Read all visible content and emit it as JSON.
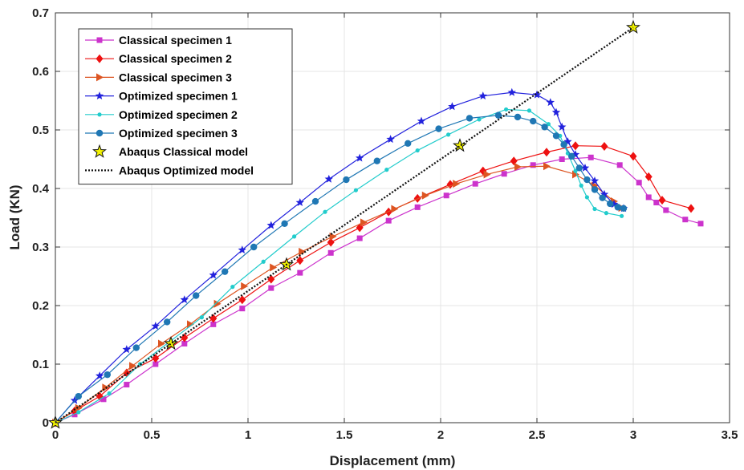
{
  "chart_data": {
    "type": "line",
    "xlabel": "Displacement (mm)",
    "ylabel": "Load (KN)",
    "xlim": [
      0,
      3.5
    ],
    "ylim": [
      0,
      0.7
    ],
    "xticks": [
      0,
      0.5,
      1,
      1.5,
      2,
      2.5,
      3,
      3.5
    ],
    "yticks": [
      0,
      0.1,
      0.2,
      0.3,
      0.4,
      0.5,
      0.6,
      0.7
    ],
    "xtick_labels": [
      "0",
      "0.5",
      "1",
      "1.5",
      "2",
      "2.5",
      "3",
      "3.5"
    ],
    "ytick_labels": [
      "0",
      "0.1",
      "0.2",
      "0.3",
      "0.4",
      "0.5",
      "0.6",
      "0.7"
    ],
    "grid": true,
    "legend_position": "top-left",
    "series": [
      {
        "name": "Classical specimen 1",
        "color": "#cc33cc",
        "marker": "square",
        "line": "solid",
        "points": [
          [
            0,
            0
          ],
          [
            0.1,
            0.014
          ],
          [
            0.25,
            0.04
          ],
          [
            0.37,
            0.065
          ],
          [
            0.52,
            0.1
          ],
          [
            0.67,
            0.135
          ],
          [
            0.82,
            0.168
          ],
          [
            0.97,
            0.195
          ],
          [
            1.12,
            0.23
          ],
          [
            1.27,
            0.256
          ],
          [
            1.43,
            0.29
          ],
          [
            1.58,
            0.315
          ],
          [
            1.73,
            0.345
          ],
          [
            1.88,
            0.368
          ],
          [
            2.03,
            0.388
          ],
          [
            2.18,
            0.408
          ],
          [
            2.33,
            0.425
          ],
          [
            2.48,
            0.44
          ],
          [
            2.63,
            0.45
          ],
          [
            2.78,
            0.453
          ],
          [
            2.93,
            0.44
          ],
          [
            3.03,
            0.41
          ],
          [
            3.08,
            0.385
          ],
          [
            3.12,
            0.376
          ],
          [
            3.17,
            0.363
          ],
          [
            3.27,
            0.347
          ],
          [
            3.35,
            0.34
          ]
        ]
      },
      {
        "name": "Classical specimen 2",
        "color": "#ee1111",
        "marker": "diamond",
        "line": "solid",
        "points": [
          [
            0,
            0
          ],
          [
            0.1,
            0.02
          ],
          [
            0.23,
            0.045
          ],
          [
            0.37,
            0.085
          ],
          [
            0.52,
            0.11
          ],
          [
            0.67,
            0.145
          ],
          [
            0.82,
            0.178
          ],
          [
            0.97,
            0.21
          ],
          [
            1.12,
            0.245
          ],
          [
            1.27,
            0.277
          ],
          [
            1.43,
            0.308
          ],
          [
            1.58,
            0.333
          ],
          [
            1.73,
            0.36
          ],
          [
            1.88,
            0.383
          ],
          [
            2.05,
            0.407
          ],
          [
            2.22,
            0.43
          ],
          [
            2.38,
            0.447
          ],
          [
            2.55,
            0.462
          ],
          [
            2.7,
            0.473
          ],
          [
            2.85,
            0.472
          ],
          [
            3.0,
            0.455
          ],
          [
            3.08,
            0.42
          ],
          [
            3.15,
            0.38
          ],
          [
            3.3,
            0.366
          ]
        ]
      },
      {
        "name": "Classical specimen 3",
        "color": "#dd5522",
        "marker": "triangle-right",
        "line": "solid",
        "points": [
          [
            0,
            0
          ],
          [
            0.12,
            0.025
          ],
          [
            0.26,
            0.06
          ],
          [
            0.4,
            0.097
          ],
          [
            0.55,
            0.135
          ],
          [
            0.7,
            0.168
          ],
          [
            0.84,
            0.203
          ],
          [
            0.98,
            0.233
          ],
          [
            1.13,
            0.265
          ],
          [
            1.28,
            0.292
          ],
          [
            1.44,
            0.318
          ],
          [
            1.6,
            0.342
          ],
          [
            1.76,
            0.365
          ],
          [
            1.92,
            0.388
          ],
          [
            2.08,
            0.408
          ],
          [
            2.24,
            0.424
          ],
          [
            2.4,
            0.437
          ],
          [
            2.55,
            0.438
          ],
          [
            2.7,
            0.424
          ],
          [
            2.8,
            0.405
          ],
          [
            2.9,
            0.378
          ],
          [
            2.94,
            0.367
          ]
        ]
      },
      {
        "name": "Optimized specimen 1",
        "color": "#2222dd",
        "marker": "star",
        "line": "solid",
        "points": [
          [
            0,
            0
          ],
          [
            0.1,
            0.038
          ],
          [
            0.23,
            0.08
          ],
          [
            0.37,
            0.125
          ],
          [
            0.52,
            0.165
          ],
          [
            0.67,
            0.21
          ],
          [
            0.82,
            0.252
          ],
          [
            0.97,
            0.295
          ],
          [
            1.12,
            0.337
          ],
          [
            1.27,
            0.376
          ],
          [
            1.42,
            0.416
          ],
          [
            1.58,
            0.452
          ],
          [
            1.74,
            0.484
          ],
          [
            1.9,
            0.515
          ],
          [
            2.06,
            0.54
          ],
          [
            2.22,
            0.558
          ],
          [
            2.37,
            0.564
          ],
          [
            2.5,
            0.56
          ],
          [
            2.57,
            0.547
          ],
          [
            2.6,
            0.53
          ],
          [
            2.63,
            0.505
          ],
          [
            2.66,
            0.48
          ],
          [
            2.7,
            0.458
          ],
          [
            2.75,
            0.435
          ],
          [
            2.8,
            0.413
          ],
          [
            2.85,
            0.39
          ],
          [
            2.9,
            0.373
          ],
          [
            2.95,
            0.366
          ]
        ]
      },
      {
        "name": "Optimized specimen 2",
        "color": "#22cccc",
        "marker": "dot",
        "line": "solid",
        "points": [
          [
            0,
            0
          ],
          [
            0.12,
            0.018
          ],
          [
            0.28,
            0.05
          ],
          [
            0.44,
            0.1
          ],
          [
            0.6,
            0.14
          ],
          [
            0.76,
            0.18
          ],
          [
            0.92,
            0.232
          ],
          [
            1.08,
            0.275
          ],
          [
            1.24,
            0.318
          ],
          [
            1.4,
            0.36
          ],
          [
            1.56,
            0.397
          ],
          [
            1.72,
            0.432
          ],
          [
            1.88,
            0.465
          ],
          [
            2.04,
            0.492
          ],
          [
            2.2,
            0.518
          ],
          [
            2.34,
            0.535
          ],
          [
            2.46,
            0.533
          ],
          [
            2.56,
            0.51
          ],
          [
            2.62,
            0.49
          ],
          [
            2.66,
            0.46
          ],
          [
            2.7,
            0.43
          ],
          [
            2.73,
            0.405
          ],
          [
            2.76,
            0.385
          ],
          [
            2.8,
            0.365
          ],
          [
            2.86,
            0.358
          ],
          [
            2.94,
            0.353
          ]
        ]
      },
      {
        "name": "Optimized specimen 3",
        "color": "#1f77b4",
        "marker": "circle",
        "line": "solid",
        "points": [
          [
            0,
            0
          ],
          [
            0.12,
            0.045
          ],
          [
            0.27,
            0.082
          ],
          [
            0.42,
            0.128
          ],
          [
            0.58,
            0.172
          ],
          [
            0.73,
            0.217
          ],
          [
            0.88,
            0.258
          ],
          [
            1.03,
            0.3
          ],
          [
            1.19,
            0.34
          ],
          [
            1.35,
            0.378
          ],
          [
            1.51,
            0.415
          ],
          [
            1.67,
            0.447
          ],
          [
            1.83,
            0.477
          ],
          [
            1.99,
            0.502
          ],
          [
            2.15,
            0.52
          ],
          [
            2.3,
            0.525
          ],
          [
            2.4,
            0.522
          ],
          [
            2.48,
            0.515
          ],
          [
            2.54,
            0.505
          ],
          [
            2.6,
            0.49
          ],
          [
            2.64,
            0.475
          ],
          [
            2.68,
            0.455
          ],
          [
            2.72,
            0.435
          ],
          [
            2.76,
            0.415
          ],
          [
            2.8,
            0.398
          ],
          [
            2.84,
            0.384
          ],
          [
            2.88,
            0.374
          ],
          [
            2.92,
            0.368
          ],
          [
            2.95,
            0.366
          ]
        ]
      },
      {
        "name": "Abaqus Classical model",
        "color": "#f2f200",
        "marker": "pentagram",
        "line": "none",
        "points": [
          [
            0,
            0
          ],
          [
            0.6,
            0.135
          ],
          [
            1.2,
            0.27
          ],
          [
            2.1,
            0.473
          ],
          [
            3.0,
            0.675
          ]
        ]
      },
      {
        "name": "Abaqus Optimized model",
        "color": "#111111",
        "marker": "none",
        "line": "dotted",
        "points": [
          [
            0,
            0
          ],
          [
            3.0,
            0.675
          ]
        ]
      }
    ]
  }
}
